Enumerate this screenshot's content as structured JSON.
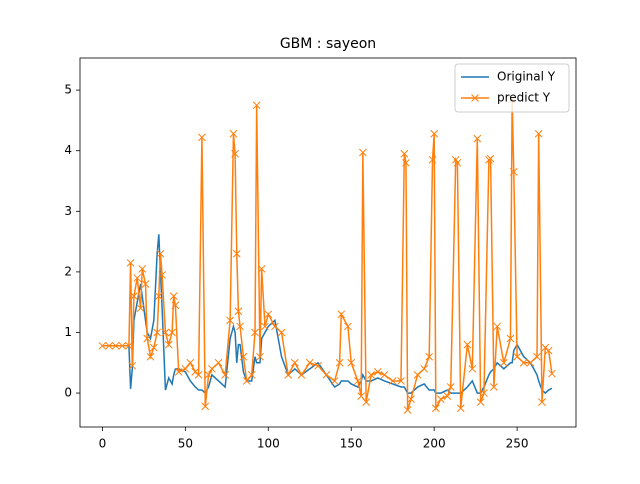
{
  "chart_data": {
    "type": "line",
    "title": "GBM : sayeon",
    "x": [
      0,
      4,
      8,
      12,
      16,
      17,
      18,
      19,
      21,
      23,
      24,
      26,
      27,
      29,
      31,
      33,
      34,
      35,
      36,
      38,
      40,
      42,
      43,
      44,
      46,
      50,
      53,
      56,
      58,
      60,
      62,
      64,
      66,
      70,
      74,
      77,
      79,
      80,
      81,
      82,
      83,
      85,
      87,
      90,
      92,
      93,
      95,
      96,
      98,
      100,
      104,
      108,
      112,
      116,
      120,
      125,
      130,
      135,
      140,
      143,
      144,
      148,
      150,
      154,
      156,
      157,
      159,
      162,
      166,
      170,
      175,
      180,
      182,
      183,
      184,
      186,
      190,
      194,
      197,
      199,
      200,
      201,
      204,
      208,
      210,
      213,
      214,
      216,
      220,
      223,
      226,
      228,
      230,
      233,
      234,
      236,
      238,
      242,
      246,
      247,
      248,
      250,
      254,
      258,
      262,
      263,
      265,
      267,
      269,
      271
    ],
    "series": [
      {
        "name": "Original Y",
        "color": "#1f77b4",
        "marker": "none",
        "values": [
          0.78,
          0.78,
          0.78,
          0.78,
          0.78,
          0.07,
          0.4,
          1.2,
          1.5,
          1.8,
          1.6,
          1.2,
          1.0,
          0.9,
          1.2,
          2.3,
          2.62,
          2.0,
          1.4,
          0.05,
          0.25,
          0.15,
          0.3,
          0.4,
          0.4,
          0.35,
          0.2,
          0.1,
          0.05,
          0.05,
          0.0,
          0.1,
          0.3,
          0.2,
          0.1,
          0.9,
          1.1,
          1.0,
          0.5,
          0.8,
          0.8,
          0.35,
          0.2,
          0.2,
          0.6,
          0.5,
          0.5,
          0.9,
          1.0,
          1.1,
          1.2,
          0.6,
          0.3,
          0.4,
          0.3,
          0.4,
          0.5,
          0.3,
          0.1,
          0.15,
          0.2,
          0.2,
          0.15,
          0.1,
          0.2,
          0.3,
          0.2,
          0.2,
          0.25,
          0.2,
          0.15,
          0.1,
          0.1,
          0.05,
          0.0,
          0.0,
          0.1,
          0.15,
          0.05,
          0.05,
          0.05,
          0.0,
          0.0,
          0.05,
          0.0,
          0.0,
          0.0,
          0.0,
          0.1,
          0.2,
          0.0,
          0.0,
          0.1,
          0.3,
          0.35,
          0.4,
          0.5,
          0.4,
          0.5,
          0.5,
          0.7,
          0.8,
          0.6,
          0.5,
          0.3,
          0.2,
          0.05,
          0.0,
          0.05,
          0.08
        ]
      },
      {
        "name": "predict Y",
        "color": "#ff7f0e",
        "marker": "x",
        "values": [
          0.78,
          0.78,
          0.78,
          0.78,
          0.78,
          2.15,
          0.45,
          1.6,
          1.9,
          1.4,
          2.05,
          1.8,
          0.9,
          0.6,
          0.75,
          1.0,
          1.6,
          2.3,
          1.95,
          1.0,
          0.8,
          1.0,
          1.6,
          1.45,
          0.35,
          0.4,
          0.5,
          0.35,
          0.3,
          4.22,
          -0.22,
          0.3,
          0.4,
          0.5,
          0.3,
          1.2,
          4.28,
          3.95,
          2.3,
          1.35,
          1.1,
          0.6,
          0.2,
          0.3,
          1.0,
          4.75,
          0.6,
          2.05,
          1.1,
          1.3,
          1.1,
          1.0,
          0.3,
          0.5,
          0.3,
          0.5,
          0.45,
          0.3,
          0.2,
          0.5,
          1.3,
          1.1,
          0.5,
          0.2,
          -0.05,
          3.97,
          -0.15,
          0.3,
          0.35,
          0.3,
          0.2,
          0.2,
          3.95,
          3.8,
          -0.28,
          -0.1,
          0.3,
          0.4,
          0.6,
          3.85,
          4.28,
          -0.25,
          -0.1,
          -0.05,
          0.1,
          3.85,
          3.8,
          -0.25,
          0.8,
          0.4,
          4.2,
          -0.15,
          0.0,
          3.85,
          3.87,
          0.1,
          1.1,
          0.5,
          0.9,
          4.85,
          3.65,
          0.6,
          0.5,
          0.5,
          0.6,
          4.28,
          -0.15,
          0.75,
          0.7,
          0.32
        ]
      }
    ],
    "xlim": [
      -13.5,
      285.5
    ],
    "ylim": [
      -0.56,
      5.53
    ],
    "xticks": [
      0,
      50,
      100,
      150,
      200,
      250
    ],
    "yticks": [
      0,
      1,
      2,
      3,
      4,
      5
    ],
    "legend": "upper right"
  }
}
